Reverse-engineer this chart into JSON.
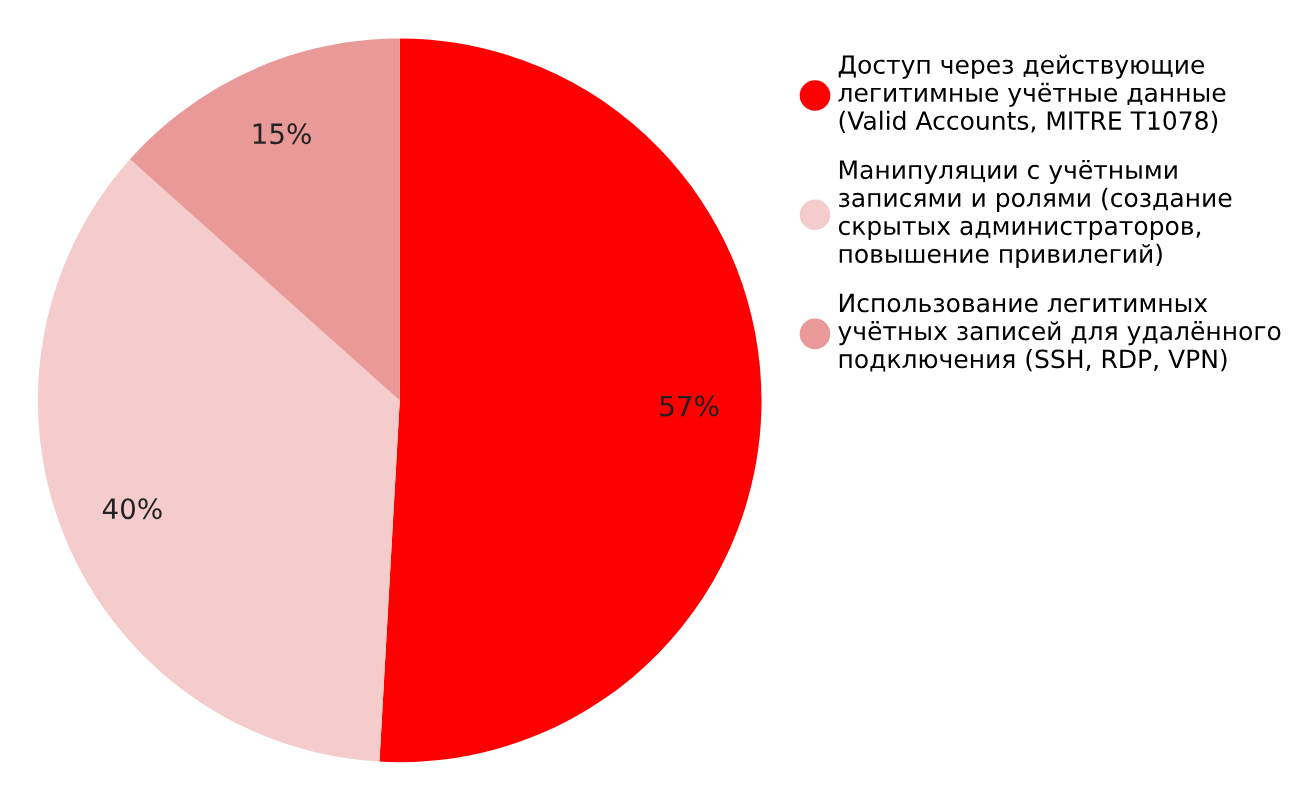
{
  "chart_data": {
    "type": "pie",
    "categories": [
      "Доступ через действующие\nлегитимные учётные данные\n(Valid Accounts, MITRE T1078)",
      "Манипуляции с учётными\nзаписями и ролями (создание\nскрытых администраторов,\nповышение привилегий)",
      "Использование легитимных\nучётных записей для удалённого\nподключения (SSH, RDP, VPN)"
    ],
    "values": [
      57,
      40,
      15
    ],
    "colors": [
      "#ff0000",
      "#f4cccc",
      "#ea9999"
    ],
    "value_labels": [
      "57%",
      "40%",
      "15%"
    ],
    "legend": "right"
  }
}
